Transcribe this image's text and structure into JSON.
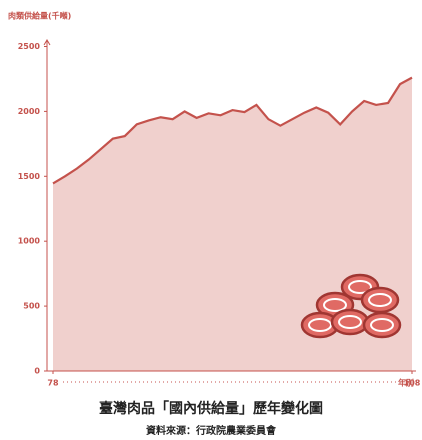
{
  "chart_data": {
    "type": "area",
    "title": "臺灣肉品「國內供給量」歷年變化圖",
    "subtitle": "資料來源：行政院農業委員會",
    "y_label": "肉類供給量(千噸)",
    "x_label": "年別",
    "x": [
      78,
      79,
      80,
      81,
      82,
      83,
      84,
      85,
      86,
      87,
      88,
      89,
      90,
      91,
      92,
      93,
      94,
      95,
      96,
      97,
      98,
      99,
      100,
      101,
      102,
      103,
      104,
      105,
      106,
      107,
      108
    ],
    "values": [
      1445,
      1500,
      1560,
      1630,
      1710,
      1790,
      1810,
      1900,
      1930,
      1955,
      1940,
      2000,
      1950,
      1985,
      1970,
      2010,
      1995,
      2050,
      1940,
      1890,
      1940,
      1990,
      2030,
      1990,
      1900,
      2000,
      2080,
      2050,
      2065,
      2210,
      2260
    ],
    "color": "#c4524c",
    "fill": "#f0d0cd",
    "xlim": [
      78,
      108
    ],
    "xticks": [
      78,
      108
    ],
    "ylim": [
      0,
      2550
    ],
    "yticks": [
      0,
      500,
      1000,
      1500,
      2000,
      2500
    ]
  }
}
